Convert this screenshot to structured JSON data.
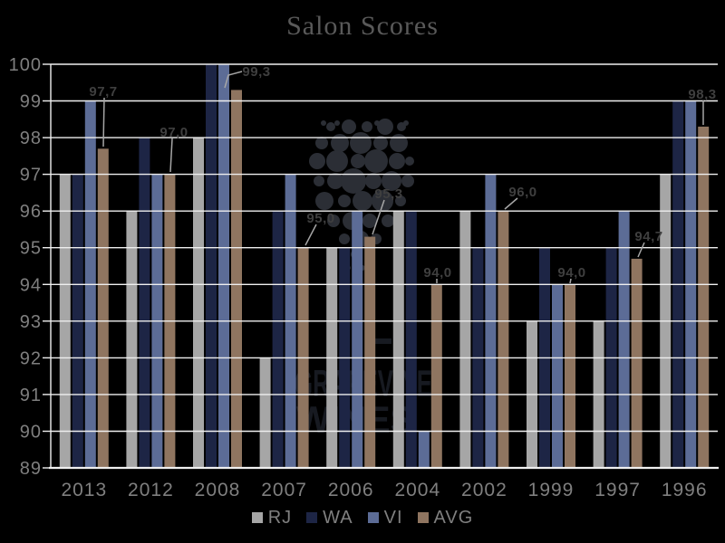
{
  "page": {
    "background_color": "#000000",
    "title_color": "#595959",
    "axis_text_color": "#7f7f7f",
    "data_label_color": "#3f3f3f",
    "gridline_color": "#efefef",
    "leader_line_color": "#a6a6a6"
  },
  "watermark": {
    "line1": "GRAPEVINE",
    "line2": "WINES",
    "logo": "grape-cluster",
    "text_color": "#171a21",
    "circle_color": "#2b2e35"
  },
  "chart_data": {
    "type": "bar",
    "title": "Salon Scores",
    "categories": [
      "2013",
      "2012",
      "2008",
      "2007",
      "2006",
      "2004",
      "2002",
      "1999",
      "1997",
      "1996"
    ],
    "series": [
      {
        "name": "RJ",
        "color": "#a6a6a6",
        "values": [
          97,
          96,
          98,
          92,
          95,
          96,
          96,
          93,
          93,
          97
        ]
      },
      {
        "name": "WA",
        "color": "#1d2545",
        "values": [
          97,
          98,
          100,
          96,
          95,
          96,
          95,
          95,
          95,
          99
        ]
      },
      {
        "name": "VI",
        "color": "#5c6c96",
        "values": [
          99,
          97,
          100,
          97,
          96,
          90,
          97,
          94,
          96,
          99
        ]
      },
      {
        "name": "AVG",
        "color": "#8f7560",
        "values": [
          97.7,
          97.0,
          99.3,
          95.0,
          95.3,
          94.0,
          96.0,
          94.0,
          94.7,
          98.3
        ]
      }
    ],
    "data_labels": {
      "on_series": "AVG",
      "texts": [
        "97,7",
        "97,0",
        "99,3",
        "95,0",
        "95,3",
        "94,0",
        "96,0",
        "94,0",
        "94,7",
        "98,3"
      ]
    },
    "y_axis": {
      "min": 89,
      "max": 100,
      "step": 1,
      "tick_labels": [
        "89",
        "90",
        "91",
        "92",
        "93",
        "94",
        "95",
        "96",
        "97",
        "98",
        "99",
        "100"
      ]
    },
    "legend": {
      "position": "bottom",
      "entries": [
        "RJ",
        "WA",
        "VI",
        "AVG"
      ]
    },
    "grid": true
  }
}
